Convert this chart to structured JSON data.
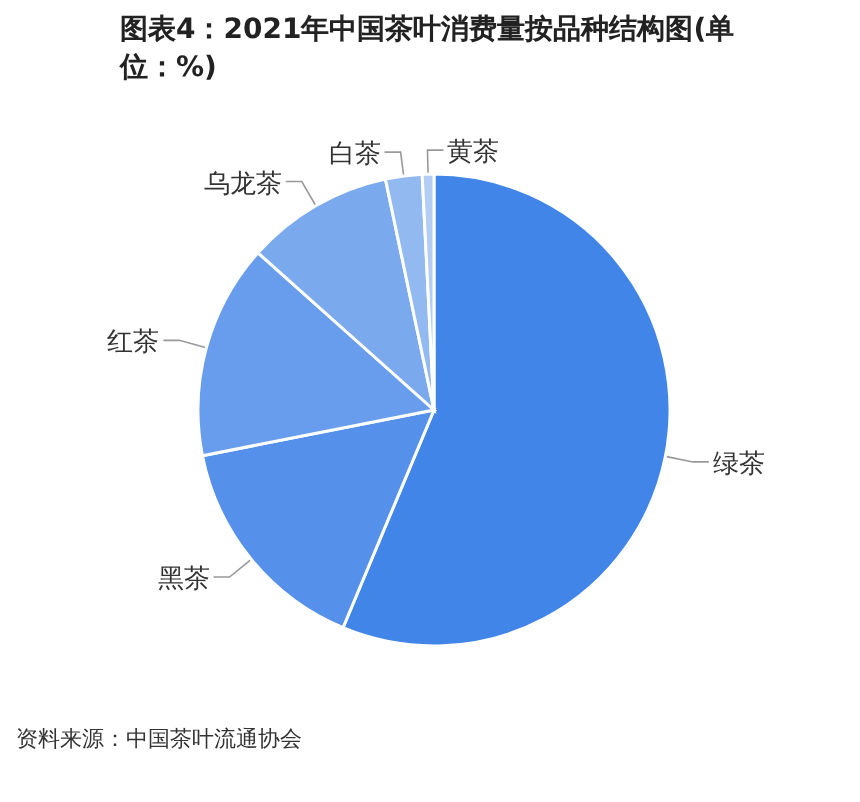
{
  "chart_data": {
    "type": "pie",
    "title": "图表4：2021年中国茶叶消费量按品种结构图(单位：%)",
    "categories": [
      "绿茶",
      "黑茶",
      "红茶",
      "乌龙茶",
      "白茶",
      "黄茶"
    ],
    "values": [
      56.3,
      15.6,
      14.7,
      10.1,
      2.5,
      0.8
    ],
    "colors": [
      "#4285e8",
      "#5590ea",
      "#689cec",
      "#7ba9ee",
      "#93b9f1",
      "#b3cdf5"
    ],
    "annotations": [
      "资料来源：中国茶叶流通协会"
    ]
  }
}
